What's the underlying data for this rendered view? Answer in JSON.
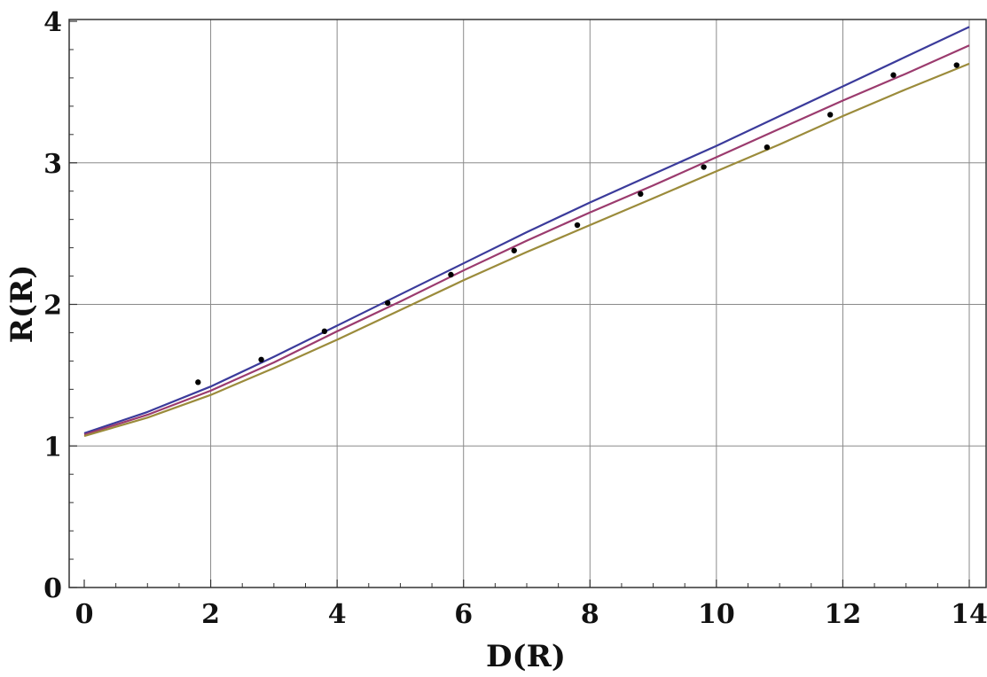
{
  "chart_data": {
    "type": "line",
    "xlabel": "D(R)",
    "ylabel": "R(R)",
    "xlim": [
      0,
      14
    ],
    "ylim": [
      0,
      4
    ],
    "x_ticks": [
      "0",
      "2",
      "4",
      "6",
      "8",
      "10",
      "12",
      "14"
    ],
    "y_ticks": [
      "0",
      "1",
      "2",
      "3",
      "4"
    ],
    "grid": true,
    "series": [
      {
        "color": "#3b3b9b",
        "x": [
          0,
          1,
          2,
          3,
          4,
          5,
          6,
          7,
          8,
          9,
          10,
          11,
          12,
          13,
          14
        ],
        "y": [
          1.09,
          1.24,
          1.42,
          1.63,
          1.85,
          2.07,
          2.29,
          2.51,
          2.72,
          2.92,
          3.12,
          3.33,
          3.54,
          3.75,
          3.96
        ]
      },
      {
        "color": "#9b3b6e",
        "x": [
          0,
          1,
          2,
          3,
          4,
          5,
          6,
          7,
          8,
          9,
          10,
          11,
          12,
          13,
          14
        ],
        "y": [
          1.08,
          1.22,
          1.39,
          1.59,
          1.81,
          2.02,
          2.24,
          2.45,
          2.65,
          2.84,
          3.04,
          3.24,
          3.44,
          3.63,
          3.83
        ]
      },
      {
        "color": "#9b8b3b",
        "x": [
          0,
          1,
          2,
          3,
          4,
          5,
          6,
          7,
          8,
          9,
          10,
          11,
          12,
          13,
          14
        ],
        "y": [
          1.07,
          1.2,
          1.36,
          1.55,
          1.75,
          1.96,
          2.17,
          2.37,
          2.56,
          2.75,
          2.94,
          3.13,
          3.33,
          3.52,
          3.7
        ]
      },
      {
        "type": "scatter",
        "color": "#000000",
        "x": [
          1.8,
          2.8,
          3.8,
          4.8,
          5.8,
          6.8,
          7.8,
          8.8,
          9.8,
          10.8,
          11.8,
          12.8,
          13.8
        ],
        "y": [
          1.45,
          1.61,
          1.81,
          2.01,
          2.21,
          2.38,
          2.56,
          2.78,
          2.97,
          3.11,
          3.34,
          3.62,
          3.69
        ]
      }
    ]
  }
}
